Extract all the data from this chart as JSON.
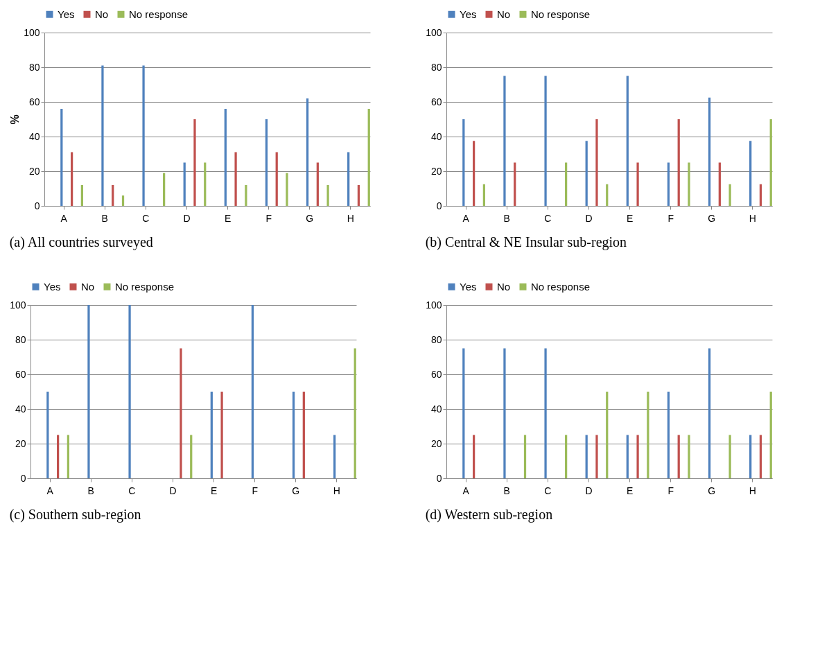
{
  "chart_data": [
    {
      "type": "bar",
      "title": "(a) All countries surveyed",
      "ylabel": "%",
      "categories": [
        "A",
        "B",
        "C",
        "D",
        "E",
        "F",
        "G",
        "H"
      ],
      "ylim": [
        0,
        100
      ],
      "yticks": [
        0,
        20,
        40,
        60,
        80,
        100
      ],
      "grid": "y",
      "legend": "top",
      "series": [
        {
          "name": "Yes",
          "color": "#4f81bd",
          "values": [
            56,
            81,
            81,
            25,
            56,
            50,
            62,
            31
          ]
        },
        {
          "name": "No",
          "color": "#c0504d",
          "values": [
            31,
            12,
            0,
            50,
            31,
            31,
            25,
            12
          ]
        },
        {
          "name": "No response",
          "color": "#9bbb59",
          "values": [
            12,
            6,
            19,
            25,
            12,
            19,
            12,
            56
          ]
        }
      ]
    },
    {
      "type": "bar",
      "title": "(b) Central & NE Insular sub-region",
      "categories": [
        "A",
        "B",
        "C",
        "D",
        "E",
        "F",
        "G",
        "H"
      ],
      "ylim": [
        0,
        100
      ],
      "yticks": [
        0,
        20,
        40,
        60,
        80,
        100
      ],
      "grid": "y",
      "legend": "top",
      "series": [
        {
          "name": "Yes",
          "color": "#4f81bd",
          "values": [
            50,
            75,
            75,
            37.5,
            75,
            25,
            62.5,
            37.5
          ]
        },
        {
          "name": "No",
          "color": "#c0504d",
          "values": [
            37.5,
            25,
            0,
            50,
            25,
            50,
            25,
            12.5
          ]
        },
        {
          "name": "No response",
          "color": "#9bbb59",
          "values": [
            12.5,
            0,
            25,
            12.5,
            0,
            25,
            12.5,
            50
          ]
        }
      ]
    },
    {
      "type": "bar",
      "title": "(c) Southern sub-region",
      "categories": [
        "A",
        "B",
        "C",
        "D",
        "E",
        "F",
        "G",
        "H"
      ],
      "ylim": [
        0,
        100
      ],
      "yticks": [
        0,
        20,
        40,
        60,
        80,
        100
      ],
      "grid": "y",
      "legend": "top",
      "series": [
        {
          "name": "Yes",
          "color": "#4f81bd",
          "values": [
            50,
            100,
            100,
            0,
            50,
            100,
            50,
            25
          ]
        },
        {
          "name": "No",
          "color": "#c0504d",
          "values": [
            25,
            0,
            0,
            75,
            50,
            0,
            50,
            0
          ]
        },
        {
          "name": "No response",
          "color": "#9bbb59",
          "values": [
            25,
            0,
            0,
            25,
            0,
            0,
            0,
            75
          ]
        }
      ]
    },
    {
      "type": "bar",
      "title": "(d) Western sub-region",
      "categories": [
        "A",
        "B",
        "C",
        "D",
        "E",
        "F",
        "G",
        "H"
      ],
      "ylim": [
        0,
        100
      ],
      "yticks": [
        0,
        20,
        40,
        60,
        80,
        100
      ],
      "grid": "y",
      "legend": "top",
      "series": [
        {
          "name": "Yes",
          "color": "#4f81bd",
          "values": [
            75,
            75,
            75,
            25,
            25,
            50,
            75,
            25
          ]
        },
        {
          "name": "No",
          "color": "#c0504d",
          "values": [
            25,
            0,
            0,
            25,
            25,
            25,
            0,
            25
          ]
        },
        {
          "name": "No response",
          "color": "#9bbb59",
          "values": [
            0,
            25,
            25,
            50,
            50,
            25,
            25,
            50
          ]
        }
      ]
    }
  ]
}
